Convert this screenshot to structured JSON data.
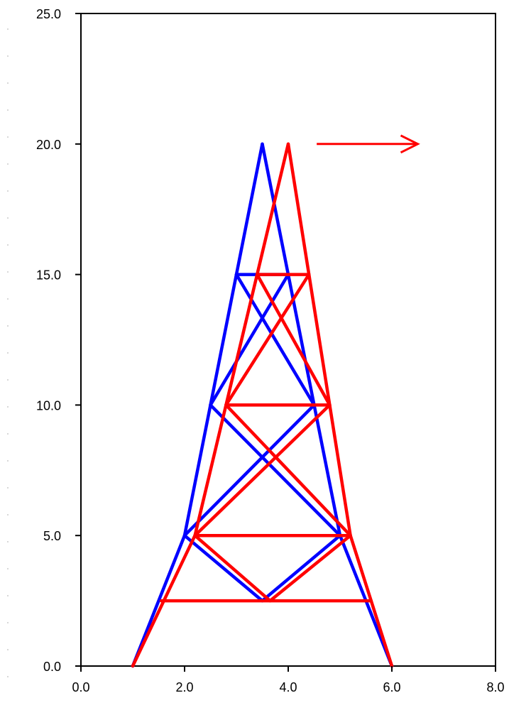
{
  "chart_data": {
    "type": "line",
    "title": "",
    "xlabel": "",
    "ylabel": "",
    "xlim": [
      0,
      8
    ],
    "ylim": [
      0,
      25
    ],
    "grid": false,
    "x_ticks": [
      "0.0",
      "2.0",
      "4.0",
      "6.0",
      "8.0"
    ],
    "y_ticks": [
      "0.0",
      "5.0",
      "10.0",
      "15.0",
      "20.0",
      "25.0"
    ],
    "series": [
      {
        "color": "#0000ff",
        "segments": [
          [
            [
              1.0,
              0.0
            ],
            [
              2.0,
              5.0
            ]
          ],
          [
            [
              2.0,
              5.0
            ],
            [
              2.5,
              10.0
            ]
          ],
          [
            [
              2.5,
              10.0
            ],
            [
              3.0,
              15.0
            ]
          ],
          [
            [
              3.0,
              15.0
            ],
            [
              3.5,
              20.0
            ]
          ],
          [
            [
              3.5,
              20.0
            ],
            [
              4.0,
              15.0
            ]
          ],
          [
            [
              4.0,
              15.0
            ],
            [
              4.5,
              10.0
            ]
          ],
          [
            [
              4.5,
              10.0
            ],
            [
              5.0,
              5.0
            ]
          ],
          [
            [
              5.0,
              5.0
            ],
            [
              6.0,
              0.0
            ]
          ],
          [
            [
              3.0,
              15.0
            ],
            [
              4.0,
              15.0
            ]
          ],
          [
            [
              2.5,
              10.0
            ],
            [
              4.0,
              15.0
            ]
          ],
          [
            [
              3.0,
              15.0
            ],
            [
              4.5,
              10.0
            ]
          ],
          [
            [
              2.5,
              10.0
            ],
            [
              5.0,
              5.0
            ]
          ],
          [
            [
              2.0,
              5.0
            ],
            [
              4.5,
              10.0
            ]
          ],
          [
            [
              2.0,
              5.0
            ],
            [
              3.5,
              2.5
            ]
          ],
          [
            [
              3.5,
              2.5
            ],
            [
              5.0,
              5.0
            ]
          ]
        ]
      },
      {
        "color": "#ff0000",
        "segments": [
          [
            [
              1.0,
              0.0
            ],
            [
              2.2,
              5.0
            ]
          ],
          [
            [
              2.2,
              5.0
            ],
            [
              2.8,
              10.0
            ]
          ],
          [
            [
              2.8,
              10.0
            ],
            [
              3.4,
              15.0
            ]
          ],
          [
            [
              3.4,
              15.0
            ],
            [
              4.0,
              20.0
            ]
          ],
          [
            [
              4.0,
              20.0
            ],
            [
              4.4,
              15.0
            ]
          ],
          [
            [
              4.4,
              15.0
            ],
            [
              4.8,
              10.0
            ]
          ],
          [
            [
              4.8,
              10.0
            ],
            [
              5.2,
              5.0
            ]
          ],
          [
            [
              5.2,
              5.0
            ],
            [
              6.0,
              0.0
            ]
          ],
          [
            [
              1.55,
              2.5
            ],
            [
              5.6,
              2.5
            ]
          ],
          [
            [
              2.2,
              5.0
            ],
            [
              5.2,
              5.0
            ]
          ],
          [
            [
              2.8,
              10.0
            ],
            [
              4.8,
              10.0
            ]
          ],
          [
            [
              3.4,
              15.0
            ],
            [
              4.4,
              15.0
            ]
          ],
          [
            [
              2.8,
              10.0
            ],
            [
              4.4,
              15.0
            ]
          ],
          [
            [
              3.4,
              15.0
            ],
            [
              4.8,
              10.0
            ]
          ],
          [
            [
              2.2,
              5.0
            ],
            [
              4.8,
              10.0
            ]
          ],
          [
            [
              2.8,
              10.0
            ],
            [
              5.2,
              5.0
            ]
          ],
          [
            [
              2.2,
              5.0
            ],
            [
              3.65,
              2.5
            ]
          ],
          [
            [
              3.65,
              2.5
            ],
            [
              5.2,
              5.0
            ]
          ]
        ]
      }
    ],
    "annotations": [
      {
        "type": "arrow",
        "color": "#ff0000",
        "from": [
          4.55,
          20.0
        ],
        "to": [
          6.5,
          20.0
        ]
      }
    ]
  }
}
